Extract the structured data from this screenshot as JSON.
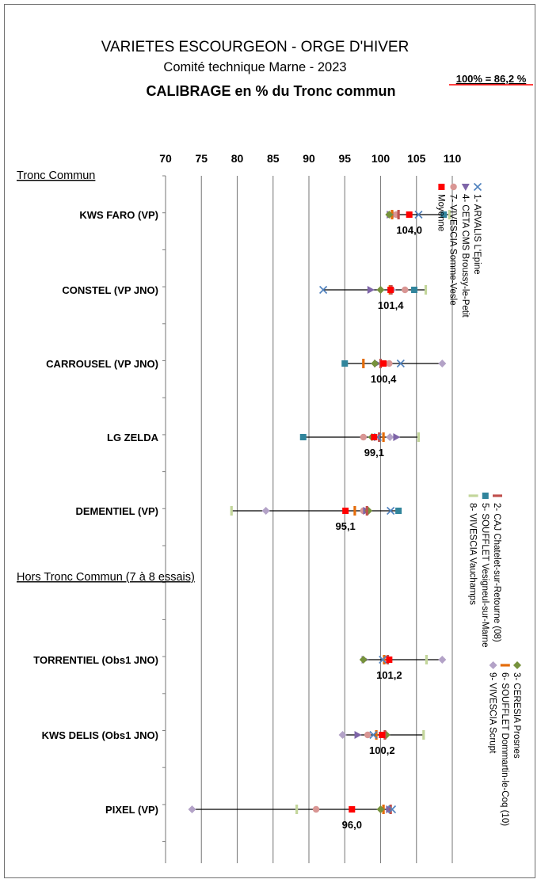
{
  "title_lines": [
    "VARIETES ESCOURGEON - ORGE D'HIVER",
    "Comité technique Marne - 2023",
    "CALIBRAGE  en % du Tronc commun"
  ],
  "reference_note": "100% = 86,2 %",
  "colors": {
    "mean": "#ff0000",
    "reference_note": "#ff0000",
    "whisker": "#000000",
    "gridline": "#808080"
  },
  "chart_data": {
    "type": "scatter",
    "orientation": "horizontal",
    "x_ticks": [
      "70",
      "75",
      "80",
      "85",
      "90",
      "95",
      "100",
      "105",
      "110"
    ],
    "xlim": [
      70,
      110
    ],
    "x_axis_position": "top",
    "gridlines": "vertical",
    "sections": [
      {
        "label": "Tronc Commun",
        "before": "KWS FARO (VP)"
      },
      {
        "label": "Hors Tronc Commun (7 à 8 essais)",
        "before": "TORRENTIEL (Obs1 JNO)"
      }
    ],
    "categories": [
      "KWS FARO (VP)",
      "CONSTEL (VP JNO)",
      "CARROUSEL (VP JNO)",
      "LG ZELDA",
      "DEMENTIEL (VP)",
      "TORRENTIEL (Obs1 JNO)",
      "KWS DELIS (Obs1 JNO)",
      "PIXEL (VP)"
    ],
    "means": [
      104.0,
      101.4,
      100.4,
      99.1,
      95.1,
      101.2,
      100.2,
      96.0
    ],
    "mean_labels": [
      "104,0",
      "101,4",
      "100,4",
      "99,1",
      "95,1",
      "101,2",
      "100,2",
      "96,0"
    ],
    "series": [
      {
        "name": "1- ARVALIS L'Epine",
        "marker": "x",
        "color": "#4f81bd",
        "values": [
          105.3,
          92.0,
          102.8,
          99.6,
          101.4,
          100.3,
          99.0,
          101.6
        ]
      },
      {
        "name": "2- CAJ Chatelet-sur-Retourne (08)",
        "marker": "dash",
        "color": "#c0504d",
        "values": [
          102.5,
          101.5,
          100.0,
          99.8,
          98.1,
          101.0,
          100.6,
          101.4
        ]
      },
      {
        "name": "3- CERESIA Prosnes",
        "marker": "diamond",
        "color": "#76923c",
        "values": [
          101.2,
          100.0,
          99.2,
          98.8,
          98.3,
          97.6,
          100.8,
          100.0
        ]
      },
      {
        "name": "4- CETA CMS Broussy-le-Petit",
        "marker": "triangle",
        "color": "#7e65a8",
        "values": [
          101.3,
          98.6,
          99.5,
          102.2,
          98.0,
          97.8,
          96.8,
          101.2
        ]
      },
      {
        "name": "5- SOUFFLET Vesigneul-sur-Marne",
        "marker": "square",
        "color": "#31859c",
        "values": [
          108.8,
          104.7,
          95.0,
          89.2,
          102.5,
          null,
          null,
          null
        ]
      },
      {
        "name": "6- SOUFFLET Dommartin-le-Coq (10)",
        "marker": "dash",
        "color": "#e46c0a",
        "values": [
          101.6,
          101.3,
          97.6,
          100.4,
          96.4,
          100.5,
          99.4,
          100.4
        ]
      },
      {
        "name": "7- VIVESCIA Somme-Vesle",
        "marker": "circle",
        "color": "#d99694",
        "values": [
          102.2,
          103.4,
          101.2,
          97.6,
          97.6,
          null,
          98.2,
          91.0
        ]
      },
      {
        "name": "8- VIVESCIA Vauchamps",
        "marker": "dash",
        "color": "#c3d69b",
        "values": [
          109.6,
          106.3,
          100.0,
          105.3,
          79.2,
          106.4,
          106.0,
          88.3
        ]
      },
      {
        "name": "9- VIVESCIA Scrupt",
        "marker": "diamond",
        "color": "#b3a2c7",
        "values": [
          101.7,
          101.6,
          108.6,
          101.3,
          84.0,
          108.6,
          94.7,
          73.7
        ]
      },
      {
        "name": "Moyenne",
        "marker": "square",
        "color": "#ff0000",
        "values": [
          104.0,
          101.4,
          100.4,
          99.1,
          95.1,
          101.2,
          100.2,
          96.0
        ]
      }
    ],
    "legend_groups": [
      [
        0,
        3,
        6,
        9
      ],
      [
        1,
        4,
        7
      ],
      [
        2,
        5,
        8
      ]
    ],
    "legend_placement": "right, rotated 90°"
  }
}
